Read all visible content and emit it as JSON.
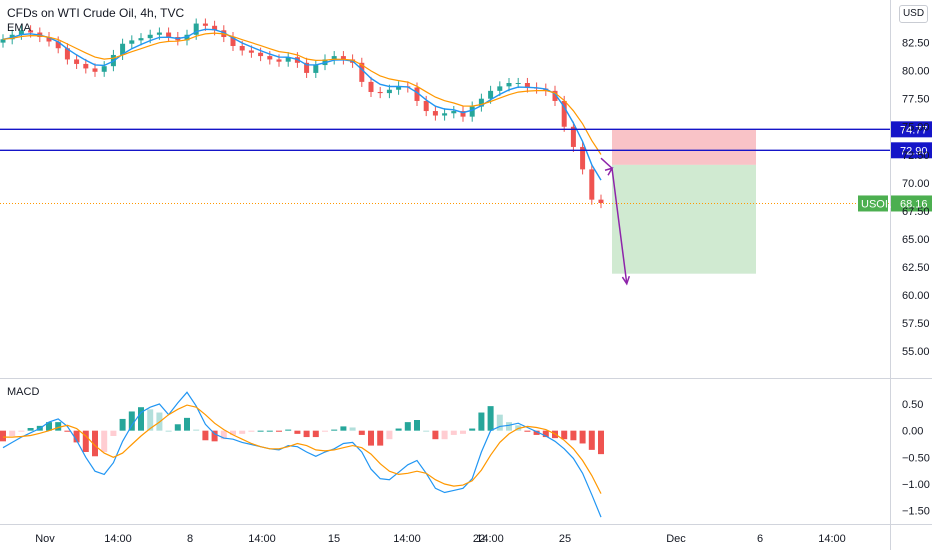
{
  "header": {
    "title": "CFDs on WTI Crude Oil, 4h, TVC",
    "indicator": "EMA",
    "currency": "USD"
  },
  "macd": {
    "label": "MACD"
  },
  "colors": {
    "up": "#26a69a",
    "down": "#ef5350",
    "ema_fast": "#2196f3",
    "ema_slow": "#ff9800",
    "level_line": "#1515c8",
    "stop_zone": "#f8b9bd",
    "target_zone": "#c8e6c9",
    "projection": "#8e24aa",
    "usoil_tag": "#4caf50",
    "level_tag": "#1515c8"
  },
  "chart_data": [
    {
      "type": "line",
      "title": "CFDs on WTI Crude Oil, 4h, TVC",
      "x_ticks": [
        "Nov",
        "14:00",
        "8",
        "14:00",
        "15",
        "14:00",
        "22",
        "14:00",
        "25",
        "Dec",
        "6",
        "14:00"
      ],
      "y_ticks": [
        "82.50",
        "80.00",
        "77.50",
        "75.00",
        "72.50",
        "70.00",
        "67.50",
        "65.00",
        "62.50",
        "60.00",
        "57.50",
        "55.00"
      ],
      "ylim": [
        52.6,
        86.3
      ],
      "x_unit": "4h bars",
      "series": [
        {
          "name": "USOIL",
          "values": [
            82.8,
            83.2,
            83.6,
            83.4,
            83.0,
            82.6,
            82.0,
            81.0,
            80.6,
            80.2,
            79.9,
            80.4,
            81.4,
            82.4,
            82.7,
            82.9,
            83.2,
            83.4,
            83.0,
            82.7,
            83.2,
            84.2,
            84.0,
            83.6,
            83.0,
            82.2,
            81.8,
            81.6,
            81.3,
            81.0,
            80.8,
            81.2,
            80.7,
            79.8,
            80.5,
            81.0,
            81.3,
            81.0,
            80.7,
            79.0,
            78.1,
            78.0,
            78.3,
            78.6,
            78.5,
            77.3,
            76.4,
            76.0,
            76.2,
            76.4,
            75.9,
            76.8,
            77.5,
            78.2,
            78.6,
            78.9,
            78.9,
            78.5,
            78.4,
            78.2,
            77.3,
            75.0,
            73.2,
            71.2,
            68.5,
            68.2
          ]
        }
      ],
      "levels": [
        {
          "name": "resistance",
          "value": 74.77,
          "label": "74.77"
        },
        {
          "name": "support",
          "value": 72.9,
          "label": "72.90"
        },
        {
          "name": "last_price",
          "value": 68.16,
          "label": "68.16",
          "symbol": "USOIL"
        }
      ],
      "position": {
        "type": "short",
        "stop": 74.77,
        "entry": 71.6,
        "target": 61.9
      },
      "projection": [
        {
          "bar": 65,
          "value": 72.2
        },
        {
          "bar": 66.2,
          "value": 71.3
        },
        {
          "bar": 67.8,
          "value": 61.0
        }
      ],
      "annotations": "Projected drop from about 71.3 toward about 61"
    },
    {
      "type": "line",
      "title": "MACD",
      "y_ticks": [
        "0.50",
        "0.00",
        "−0.50",
        "−1.00",
        "−1.50"
      ],
      "ylim": [
        -1.75,
        0.95
      ],
      "series": [
        {
          "name": "MACD",
          "values": [
            -0.32,
            -0.22,
            -0.12,
            -0.04,
            0.04,
            0.16,
            0.22,
            0.08,
            -0.18,
            -0.5,
            -0.76,
            -0.82,
            -0.6,
            -0.2,
            0.1,
            0.34,
            0.44,
            0.5,
            0.3,
            0.52,
            0.72,
            0.46,
            0.12,
            -0.06,
            -0.14,
            -0.16,
            -0.22,
            -0.26,
            -0.3,
            -0.34,
            -0.36,
            -0.28,
            -0.3,
            -0.4,
            -0.48,
            -0.4,
            -0.34,
            -0.24,
            -0.22,
            -0.4,
            -0.72,
            -0.9,
            -0.92,
            -0.78,
            -0.64,
            -0.56,
            -0.8,
            -1.08,
            -1.16,
            -1.12,
            -1.08,
            -0.9,
            -0.4,
            0.0,
            0.08,
            0.1,
            0.14,
            0.06,
            -0.02,
            -0.1,
            -0.2,
            -0.34,
            -0.52,
            -0.8,
            -1.2,
            -1.62
          ]
        },
        {
          "name": "Signal",
          "values": [
            -0.12,
            -0.12,
            -0.11,
            -0.09,
            -0.05,
            0.0,
            0.06,
            0.1,
            0.04,
            -0.1,
            -0.28,
            -0.42,
            -0.5,
            -0.42,
            -0.26,
            -0.1,
            0.04,
            0.16,
            0.3,
            0.4,
            0.48,
            0.44,
            0.3,
            0.14,
            0.02,
            -0.08,
            -0.16,
            -0.24,
            -0.3,
            -0.34,
            -0.34,
            -0.3,
            -0.24,
            -0.28,
            -0.36,
            -0.38,
            -0.36,
            -0.32,
            -0.28,
            -0.32,
            -0.44,
            -0.62,
            -0.76,
            -0.82,
            -0.8,
            -0.76,
            -0.8,
            -0.92,
            -1.0,
            -1.04,
            -1.02,
            -0.94,
            -0.74,
            -0.46,
            -0.22,
            -0.06,
            0.04,
            0.08,
            0.06,
            0.02,
            -0.06,
            -0.18,
            -0.34,
            -0.56,
            -0.84,
            -1.18
          ]
        }
      ]
    }
  ]
}
